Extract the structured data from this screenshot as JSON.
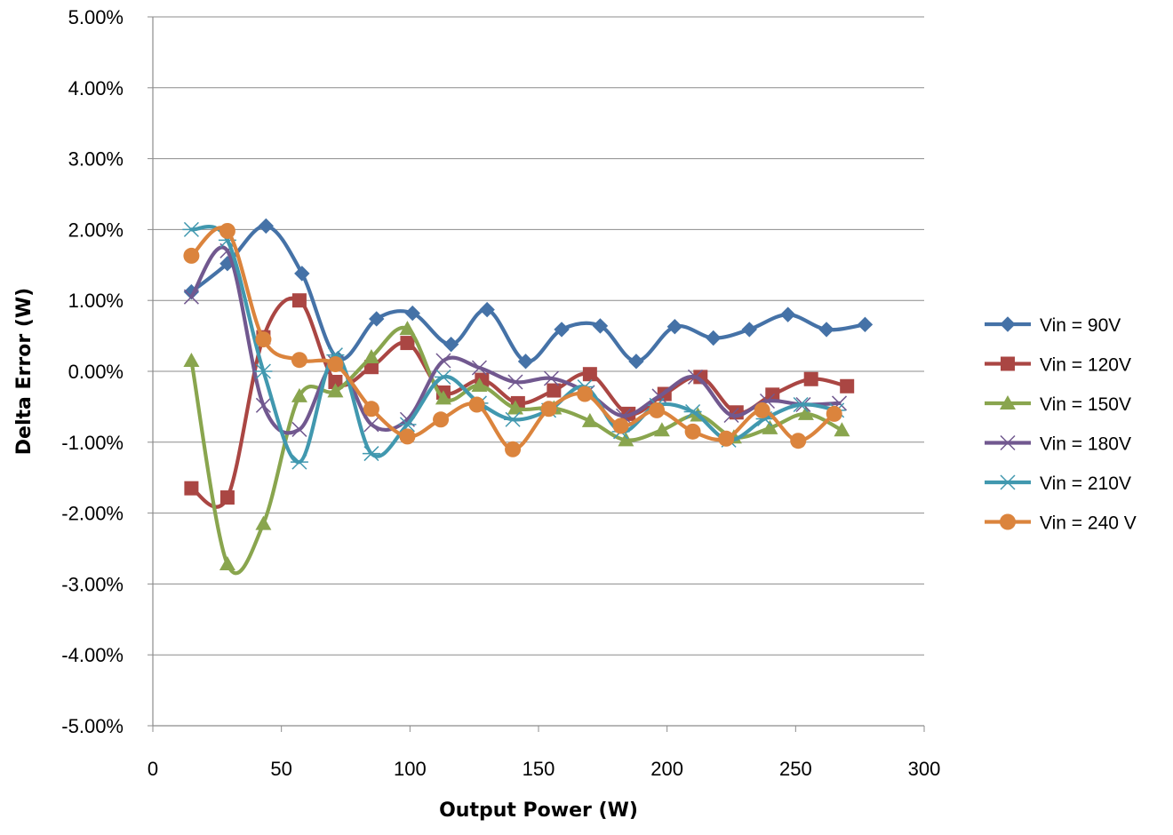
{
  "chart_data": {
    "type": "line",
    "smooth": true,
    "xlabel": "Output Power (W)",
    "ylabel": "Delta Error (W)",
    "xlim": [
      0,
      300
    ],
    "ylim": [
      -5,
      5
    ],
    "x_ticks": [
      "0",
      "50",
      "100",
      "150",
      "200",
      "250",
      "300"
    ],
    "y_ticks": [
      "-5.00%",
      "-4.00%",
      "-3.00%",
      "-2.00%",
      "-1.00%",
      "0.00%",
      "1.00%",
      "2.00%",
      "3.00%",
      "4.00%",
      "5.00%"
    ],
    "y_unit": "%",
    "grid": "horizontal",
    "legend_position": "right",
    "series": [
      {
        "name": "Vin = 90V",
        "color": "#4572a7",
        "marker": "diamond",
        "x": [
          15,
          29,
          44,
          58,
          72,
          87,
          101,
          116,
          130,
          145,
          159,
          174,
          188,
          203,
          218,
          232,
          247,
          262,
          277
        ],
        "y": [
          1.12,
          1.52,
          2.05,
          1.38,
          0.18,
          0.74,
          0.82,
          0.38,
          0.87,
          0.14,
          0.59,
          0.64,
          0.14,
          0.63,
          0.47,
          0.59,
          0.8,
          0.59,
          0.66
        ]
      },
      {
        "name": "Vin = 120V",
        "color": "#aa4643",
        "marker": "square",
        "x": [
          15,
          29,
          43,
          57,
          71,
          85,
          99,
          113,
          128,
          142,
          156,
          170,
          185,
          199,
          213,
          227,
          241,
          256,
          270
        ],
        "y": [
          -1.65,
          -1.78,
          0.48,
          1.0,
          -0.15,
          0.06,
          0.4,
          -0.3,
          -0.12,
          -0.45,
          -0.27,
          -0.04,
          -0.6,
          -0.32,
          -0.08,
          -0.58,
          -0.33,
          -0.11,
          -0.21
        ]
      },
      {
        "name": "Vin = 150V",
        "color": "#89a54e",
        "marker": "triangle",
        "x": [
          15,
          29,
          43,
          57,
          71,
          85,
          99,
          113,
          127,
          141,
          156,
          170,
          184,
          198,
          212,
          226,
          240,
          254,
          268
        ],
        "y": [
          0.15,
          -2.72,
          -2.15,
          -0.35,
          -0.28,
          0.2,
          0.6,
          -0.38,
          -0.2,
          -0.52,
          -0.52,
          -0.7,
          -0.97,
          -0.83,
          -0.62,
          -0.93,
          -0.8,
          -0.6,
          -0.83
        ]
      },
      {
        "name": "Vin = 180V",
        "color": "#71588f",
        "marker": "x",
        "x": [
          15,
          29,
          43,
          57,
          71,
          85,
          99,
          113,
          127,
          141,
          155,
          169,
          183,
          197,
          211,
          225,
          239,
          253,
          267
        ],
        "y": [
          1.05,
          1.7,
          -0.48,
          -0.82,
          0.12,
          -0.75,
          -0.68,
          0.15,
          0.05,
          -0.15,
          -0.1,
          -0.3,
          -0.63,
          -0.35,
          -0.08,
          -0.62,
          -0.42,
          -0.47,
          -0.45
        ]
      },
      {
        "name": "Vin = 210V",
        "color": "#4198af",
        "marker": "asterisk",
        "x": [
          15,
          29,
          43,
          57,
          71,
          85,
          99,
          113,
          127,
          140,
          154,
          168,
          182,
          196,
          210,
          224,
          238,
          252,
          266
        ],
        "y": [
          2.0,
          1.85,
          0.0,
          -1.28,
          0.23,
          -1.16,
          -0.75,
          -0.08,
          -0.45,
          -0.68,
          -0.55,
          -0.22,
          -0.85,
          -0.48,
          -0.57,
          -0.97,
          -0.67,
          -0.47,
          -0.55
        ]
      },
      {
        "name": "Vin = 240 V",
        "color": "#db843d",
        "marker": "circle",
        "x": [
          15,
          29,
          43,
          57,
          71,
          85,
          99,
          112,
          126,
          140,
          154,
          168,
          182,
          196,
          210,
          223,
          237,
          251,
          265
        ],
        "y": [
          1.63,
          1.98,
          0.45,
          0.16,
          0.1,
          -0.53,
          -0.92,
          -0.68,
          -0.47,
          -1.1,
          -0.53,
          -0.32,
          -0.77,
          -0.55,
          -0.85,
          -0.95,
          -0.55,
          -0.98,
          -0.6
        ]
      }
    ]
  }
}
